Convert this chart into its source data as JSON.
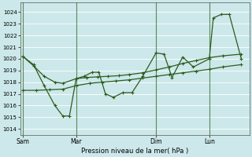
{
  "bg_color": "#cce8ea",
  "line_color": "#2d5c1e",
  "grid_color": "#b0d8d8",
  "xlabel": "Pression niveau de la mer( hPa )",
  "ylim": [
    1013.5,
    1024.8
  ],
  "yticks": [
    1014,
    1015,
    1016,
    1017,
    1018,
    1019,
    1020,
    1021,
    1022,
    1023,
    1024
  ],
  "xtick_labels": [
    "Sam",
    "Mar",
    "Dim",
    "Lun"
  ],
  "xtick_positions": [
    0.0,
    2.0,
    5.0,
    7.0
  ],
  "vline_positions": [
    0.0,
    2.0,
    5.0,
    7.0
  ],
  "xlim": [
    -0.1,
    8.5
  ],
  "line_jagged_x": [
    0.0,
    0.4,
    0.8,
    1.2,
    1.5,
    1.75,
    2.0,
    2.3,
    2.6,
    2.85,
    3.1,
    3.4,
    3.75,
    4.1,
    4.5,
    5.0,
    5.3,
    5.6,
    6.0,
    6.4,
    7.0,
    7.15,
    7.45,
    7.75,
    8.2
  ],
  "line_jagged_y": [
    1020.2,
    1019.5,
    1017.7,
    1016.0,
    1015.1,
    1015.1,
    1018.3,
    1018.5,
    1018.85,
    1018.85,
    1017.0,
    1016.7,
    1017.1,
    1017.1,
    1018.5,
    1020.5,
    1020.4,
    1018.4,
    1020.15,
    1019.3,
    1020.0,
    1023.5,
    1023.8,
    1023.8,
    1020.0
  ],
  "line_smooth_x": [
    0.0,
    0.4,
    0.8,
    1.2,
    1.5,
    2.0,
    2.4,
    2.8,
    3.2,
    3.6,
    4.0,
    4.5,
    5.0,
    5.5,
    6.0,
    6.5,
    7.0,
    7.5,
    8.2
  ],
  "line_smooth_y": [
    1020.2,
    1019.4,
    1018.5,
    1018.0,
    1017.9,
    1018.3,
    1018.4,
    1018.45,
    1018.5,
    1018.55,
    1018.65,
    1018.8,
    1019.05,
    1019.3,
    1019.6,
    1019.85,
    1020.1,
    1020.25,
    1020.4
  ],
  "line_trend_x": [
    0.0,
    0.5,
    1.0,
    1.5,
    2.0,
    2.5,
    3.0,
    3.5,
    4.0,
    4.5,
    5.0,
    5.5,
    6.0,
    6.5,
    7.0,
    7.5,
    8.2
  ],
  "line_trend_y": [
    1017.3,
    1017.3,
    1017.35,
    1017.4,
    1017.7,
    1017.9,
    1018.0,
    1018.1,
    1018.2,
    1018.35,
    1018.5,
    1018.65,
    1018.8,
    1018.95,
    1019.1,
    1019.3,
    1019.5
  ]
}
